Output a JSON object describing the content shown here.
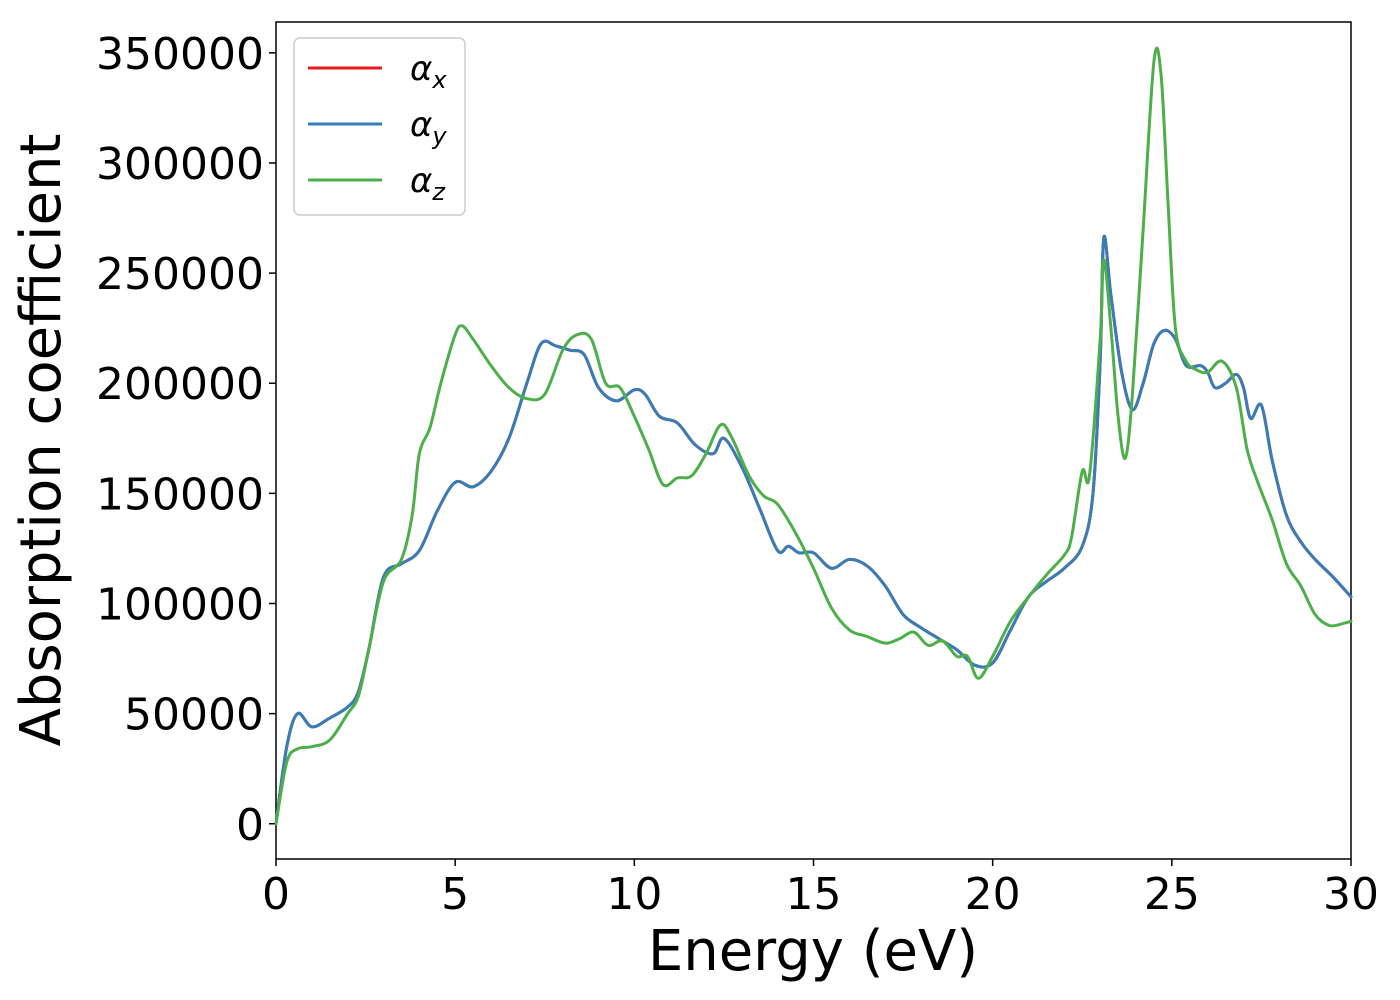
{
  "chart_data": {
    "type": "line",
    "xlabel": "Energy (eV)",
    "ylabel": "Absorption coefficient",
    "xlim": [
      0,
      30
    ],
    "ylim": [
      -16000,
      364000
    ],
    "xticks": [
      0,
      5,
      10,
      15,
      20,
      25,
      30
    ],
    "yticks": [
      0,
      50000,
      100000,
      150000,
      200000,
      250000,
      300000,
      350000
    ],
    "grid": false,
    "legend_position": "top-left",
    "series": [
      {
        "name": "α",
        "subscript": "x",
        "color": "#e41a1c",
        "x": [
          0,
          0.3,
          0.6,
          1.0,
          1.5,
          2.0,
          2.3,
          2.6,
          3.0,
          3.5,
          4.0,
          4.5,
          5.0,
          5.5,
          6.0,
          6.5,
          7.0,
          7.4,
          7.8,
          8.2,
          8.6,
          9.0,
          9.5,
          10.0,
          10.3,
          10.7,
          11.2,
          11.7,
          12.2,
          12.5,
          13.0,
          13.5,
          14.0,
          14.3,
          14.6,
          15.0,
          15.5,
          16.0,
          16.5,
          17.0,
          17.5,
          18.0,
          18.5,
          19.0,
          19.5,
          20.0,
          20.5,
          21.0,
          21.5,
          22.0,
          22.5,
          22.8,
          23.0,
          23.1,
          23.3,
          23.6,
          23.9,
          24.2,
          24.5,
          24.8,
          25.1,
          25.4,
          25.8,
          26.0,
          26.2,
          26.5,
          26.8,
          27.0,
          27.2,
          27.5,
          27.8,
          28.2,
          28.6,
          29.0,
          29.5,
          30.0
        ],
        "y": [
          0,
          35000,
          50000,
          44000,
          48000,
          53000,
          60000,
          80000,
          112000,
          118000,
          124000,
          142000,
          155000,
          153000,
          160000,
          175000,
          200000,
          218000,
          217000,
          215000,
          213000,
          198000,
          192000,
          197000,
          195000,
          185000,
          182000,
          172000,
          168000,
          175000,
          162000,
          143000,
          124000,
          126000,
          123000,
          123000,
          116000,
          120000,
          117000,
          108000,
          95000,
          89000,
          84000,
          79000,
          72000,
          73000,
          88000,
          103000,
          110000,
          116000,
          126000,
          150000,
          210000,
          266000,
          240000,
          205000,
          188000,
          200000,
          218000,
          224000,
          220000,
          208000,
          208000,
          205000,
          198000,
          200000,
          204000,
          198000,
          184000,
          190000,
          165000,
          140000,
          128000,
          120000,
          112000,
          103000
        ]
      },
      {
        "name": "α",
        "subscript": "y",
        "color": "#377eb8",
        "x": [
          0,
          0.3,
          0.6,
          1.0,
          1.5,
          2.0,
          2.3,
          2.6,
          3.0,
          3.5,
          4.0,
          4.5,
          5.0,
          5.5,
          6.0,
          6.5,
          7.0,
          7.4,
          7.8,
          8.2,
          8.6,
          9.0,
          9.5,
          10.0,
          10.3,
          10.7,
          11.2,
          11.7,
          12.2,
          12.5,
          13.0,
          13.5,
          14.0,
          14.3,
          14.6,
          15.0,
          15.5,
          16.0,
          16.5,
          17.0,
          17.5,
          18.0,
          18.5,
          19.0,
          19.5,
          20.0,
          20.5,
          21.0,
          21.5,
          22.0,
          22.5,
          22.8,
          23.0,
          23.1,
          23.3,
          23.6,
          23.9,
          24.2,
          24.5,
          24.8,
          25.1,
          25.4,
          25.8,
          26.0,
          26.2,
          26.5,
          26.8,
          27.0,
          27.2,
          27.5,
          27.8,
          28.2,
          28.6,
          29.0,
          29.5,
          30.0
        ],
        "y": [
          0,
          35000,
          50000,
          44000,
          48000,
          53000,
          60000,
          80000,
          112000,
          118000,
          124000,
          142000,
          155000,
          153000,
          160000,
          175000,
          200000,
          218000,
          217000,
          215000,
          213000,
          198000,
          192000,
          197000,
          195000,
          185000,
          182000,
          172000,
          168000,
          175000,
          162000,
          143000,
          124000,
          126000,
          123000,
          123000,
          116000,
          120000,
          117000,
          108000,
          95000,
          89000,
          84000,
          79000,
          72000,
          73000,
          88000,
          103000,
          110000,
          116000,
          126000,
          150000,
          210000,
          266000,
          240000,
          205000,
          188000,
          200000,
          218000,
          224000,
          220000,
          208000,
          208000,
          205000,
          198000,
          200000,
          204000,
          198000,
          184000,
          190000,
          165000,
          140000,
          128000,
          120000,
          112000,
          103000
        ]
      },
      {
        "name": "α",
        "subscript": "z",
        "color": "#4daf4a",
        "x": [
          0,
          0.3,
          0.6,
          1.0,
          1.5,
          2.0,
          2.3,
          2.6,
          3.0,
          3.5,
          3.8,
          4.0,
          4.3,
          4.6,
          5.0,
          5.2,
          5.5,
          6.0,
          6.5,
          7.0,
          7.5,
          8.0,
          8.4,
          8.8,
          9.2,
          9.6,
          10.0,
          10.4,
          10.8,
          11.2,
          11.6,
          12.0,
          12.4,
          12.7,
          13.2,
          13.6,
          14.0,
          14.5,
          15.0,
          15.5,
          16.0,
          16.5,
          17.0,
          17.4,
          17.8,
          18.2,
          18.6,
          19.0,
          19.3,
          19.6,
          20.0,
          20.5,
          21.0,
          21.5,
          22.0,
          22.2,
          22.5,
          22.7,
          23.0,
          23.1,
          23.3,
          23.5,
          23.7,
          23.9,
          24.2,
          24.5,
          24.7,
          24.9,
          25.1,
          25.4,
          25.7,
          26.0,
          26.4,
          26.8,
          27.1,
          27.4,
          27.8,
          28.2,
          28.6,
          29.0,
          29.4,
          29.8,
          30.0
        ],
        "y": [
          0,
          28000,
          34000,
          35000,
          38000,
          50000,
          58000,
          80000,
          110000,
          120000,
          140000,
          168000,
          180000,
          200000,
          222000,
          226000,
          220000,
          208000,
          198000,
          193000,
          195000,
          215000,
          222000,
          220000,
          200000,
          198000,
          185000,
          170000,
          154000,
          157000,
          158000,
          168000,
          181000,
          176000,
          158000,
          149000,
          145000,
          132000,
          116000,
          98000,
          88000,
          85000,
          82000,
          84000,
          87000,
          81000,
          83000,
          76000,
          76000,
          66000,
          76000,
          92000,
          103000,
          113000,
          122000,
          130000,
          160000,
          158000,
          220000,
          256000,
          225000,
          185000,
          166000,
          195000,
          270000,
          346000,
          340000,
          280000,
          225000,
          210000,
          206000,
          205000,
          210000,
          198000,
          170000,
          155000,
          138000,
          118000,
          108000,
          95000,
          90000,
          91000,
          92000
        ]
      }
    ]
  }
}
